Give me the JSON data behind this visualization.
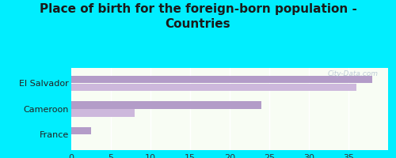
{
  "title": "Place of birth for the foreign-born population -\nCountries",
  "categories": [
    "France",
    "Cameroon",
    "El Salvador"
  ],
  "bars_dark": [
    2.5,
    24,
    38
  ],
  "bars_light": [
    0,
    8,
    36
  ],
  "bar_color_dark": "#b39cc8",
  "bar_color_light": "#cdb8dc",
  "bg_outer": "#00eeff",
  "bg_inner_top": "#e8f0e0",
  "bg_inner_bottom": "#f8fdf4",
  "xlim": [
    0,
    40
  ],
  "xticks": [
    0,
    5,
    10,
    15,
    20,
    25,
    30,
    35
  ],
  "title_fontsize": 11,
  "label_fontsize": 8,
  "tick_fontsize": 8,
  "watermark": "City-Data.com"
}
